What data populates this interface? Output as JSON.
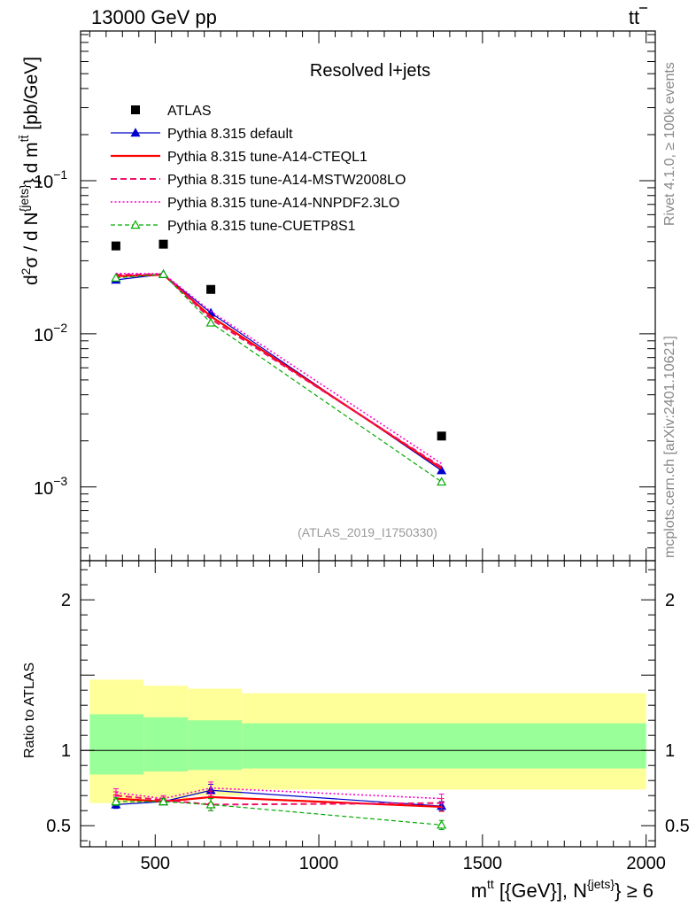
{
  "header": {
    "energy_label": "13000 GeV pp",
    "process_label_main": "tt",
    "process_label_overline": "¯"
  },
  "side_text": {
    "rivet": "Rivet 4.1.0, ≥ 100k events",
    "mcplots": "mcplots.cern.ch [arXiv:2401.10621]"
  },
  "chart_data": {
    "type": "line",
    "title": "Resolved l+jets",
    "analysis_id": "(ATLAS_2019_I1750330)",
    "xlabel": {
      "main": "m",
      "sup1": "t",
      "bar": "¯",
      "sup2": "t",
      "rest": " [{GeV}], N",
      "sup3": "{jets}",
      "tail": "} ≥ 6"
    },
    "ylabel_main": {
      "d2sigma": "d",
      "sup2": "2",
      "sigma": "σ / d N",
      "sup_jets": "{jets}",
      "mid": "} d m",
      "sup_tt": "tt̄",
      "unit": " [pb/GeV]"
    },
    "ylabel_ratio": "Ratio to ATLAS",
    "xlim": [
      272,
      2028
    ],
    "ylim_main": [
      0.00033,
      0.95
    ],
    "ylim_ratio": [
      0.36,
      2.26
    ],
    "x_ticks": [
      500,
      1000,
      1500,
      2000
    ],
    "x_tick_labels": [
      "500",
      "1000",
      "1500",
      "2000"
    ],
    "y_ticks_main": [
      {
        "value": 0.1,
        "base": "10",
        "exp": "−1"
      },
      {
        "value": 0.01,
        "base": "10",
        "exp": "−2"
      },
      {
        "value": 0.001,
        "base": "10",
        "exp": "−3"
      }
    ],
    "y_ticks_ratio": [
      {
        "value": 2,
        "label": "2"
      },
      {
        "value": 1,
        "label": "1"
      },
      {
        "value": 0.5,
        "label": "0.5"
      }
    ],
    "x": [
      380,
      525,
      670,
      1375
    ],
    "band_edges": [
      300,
      465,
      600,
      765,
      2000
    ],
    "band_inner": [
      [
        0.84,
        1.24
      ],
      [
        0.86,
        1.22
      ],
      [
        0.87,
        1.2
      ],
      [
        0.88,
        1.18
      ]
    ],
    "band_outer": [
      [
        0.65,
        1.47
      ],
      [
        0.68,
        1.43
      ],
      [
        0.7,
        1.41
      ],
      [
        0.74,
        1.38
      ]
    ],
    "data": {
      "name": "ATLAS",
      "values": [
        0.0375,
        0.0385,
        0.0195,
        0.00215
      ]
    },
    "series": [
      {
        "name": "Pythia 8.315 default",
        "color": "#0000cc",
        "dash": "",
        "marker": "triangle",
        "width": 1.2,
        "values": [
          0.0225,
          0.0245,
          0.0137,
          0.00128
        ],
        "ratio": [
          0.64,
          0.66,
          0.735,
          0.63
        ],
        "err": [
          0.025,
          0.02,
          0.04,
          0.03
        ]
      },
      {
        "name": "Pythia 8.315 tune-A14-CTEQL1",
        "color": "#ff0000",
        "dash": "",
        "marker": "",
        "width": 2.2,
        "values": [
          0.0238,
          0.0243,
          0.013,
          0.00132
        ],
        "ratio": [
          0.68,
          0.66,
          0.69,
          0.625
        ],
        "err": [
          0.025,
          0.02,
          0.04,
          0.03
        ]
      },
      {
        "name": "Pythia 8.315 tune-A14-MSTW2008LO",
        "color": "#ee1166",
        "dash": "7,4",
        "marker": "",
        "width": 2.0,
        "values": [
          0.0243,
          0.0245,
          0.0125,
          0.00135
        ],
        "ratio": [
          0.7,
          0.67,
          0.64,
          0.65
        ],
        "err": [
          0.025,
          0.02,
          0.04,
          0.03
        ]
      },
      {
        "name": "Pythia 8.315 tune-A14-NNPDF2.3LO",
        "color": "#ff00cc",
        "dash": "2,2.5",
        "marker": "",
        "width": 1.6,
        "values": [
          0.0248,
          0.0247,
          0.014,
          0.00142
        ],
        "ratio": [
          0.72,
          0.68,
          0.75,
          0.68
        ],
        "err": [
          0.025,
          0.02,
          0.04,
          0.03
        ]
      },
      {
        "name": "Pythia 8.315 tune-CUETP8S1",
        "color": "#00aa00",
        "dash": "5,3",
        "marker": "open-triangle",
        "width": 1.2,
        "values": [
          0.0232,
          0.0245,
          0.0118,
          0.00108
        ],
        "ratio": [
          0.66,
          0.66,
          0.64,
          0.505
        ],
        "err": [
          0.025,
          0.02,
          0.04,
          0.03
        ]
      }
    ]
  }
}
